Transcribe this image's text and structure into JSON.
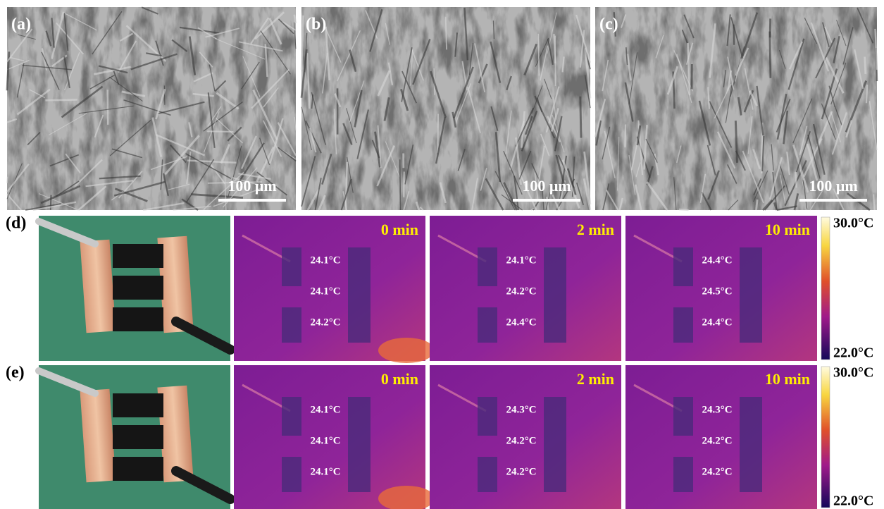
{
  "sem_panels": [
    {
      "label": "(a)",
      "scale_bar": "100 μm"
    },
    {
      "label": "(b)",
      "scale_bar": "100 μm"
    },
    {
      "label": "(c)",
      "scale_bar": "100 μm"
    }
  ],
  "thermal_rows": [
    {
      "label": "(d)",
      "panels": [
        {
          "time": "0 min",
          "temps": [
            "24.1°C",
            "24.1°C",
            "24.2°C"
          ]
        },
        {
          "time": "2 min",
          "temps": [
            "24.1°C",
            "24.2°C",
            "24.4°C"
          ]
        },
        {
          "time": "10 min",
          "temps": [
            "24.4°C",
            "24.5°C",
            "24.4°C"
          ]
        }
      ],
      "colorbar": {
        "max": "30.0°C",
        "min": "22.0°C"
      }
    },
    {
      "label": "(e)",
      "panels": [
        {
          "time": "0 min",
          "temps": [
            "24.1°C",
            "24.1°C",
            "24.1°C"
          ]
        },
        {
          "time": "2 min",
          "temps": [
            "24.3°C",
            "24.2°C",
            "24.2°C"
          ]
        },
        {
          "time": "10 min",
          "temps": [
            "24.3°C",
            "24.2°C",
            "24.2°C"
          ]
        }
      ],
      "colorbar": {
        "max": "30.0°C",
        "min": "22.0°C"
      }
    }
  ]
}
